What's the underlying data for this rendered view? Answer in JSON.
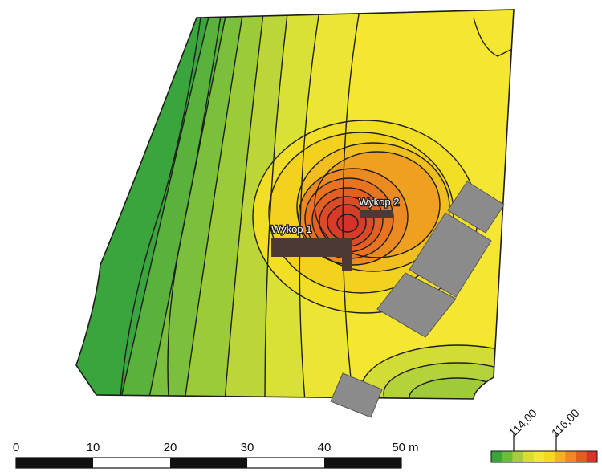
{
  "excavations": [
    {
      "label": "Wykop 1"
    },
    {
      "label": "Wykop 2"
    }
  ],
  "scale_bar": {
    "ticks": [
      "0",
      "10",
      "20",
      "30",
      "40",
      "50 m"
    ]
  },
  "legend": {
    "labels": [
      "114,00",
      "116,00"
    ],
    "colors": [
      "#3aa53c",
      "#6cbb3c",
      "#a6cc3a",
      "#d9dd30",
      "#f2e830",
      "#f6d81c",
      "#f4b31e",
      "#ee8a22",
      "#e65a24",
      "#d8342a"
    ]
  },
  "colors": {
    "building": "#8b8b8b",
    "trench": "#4a3a33",
    "contour": "#1d1d1d"
  }
}
